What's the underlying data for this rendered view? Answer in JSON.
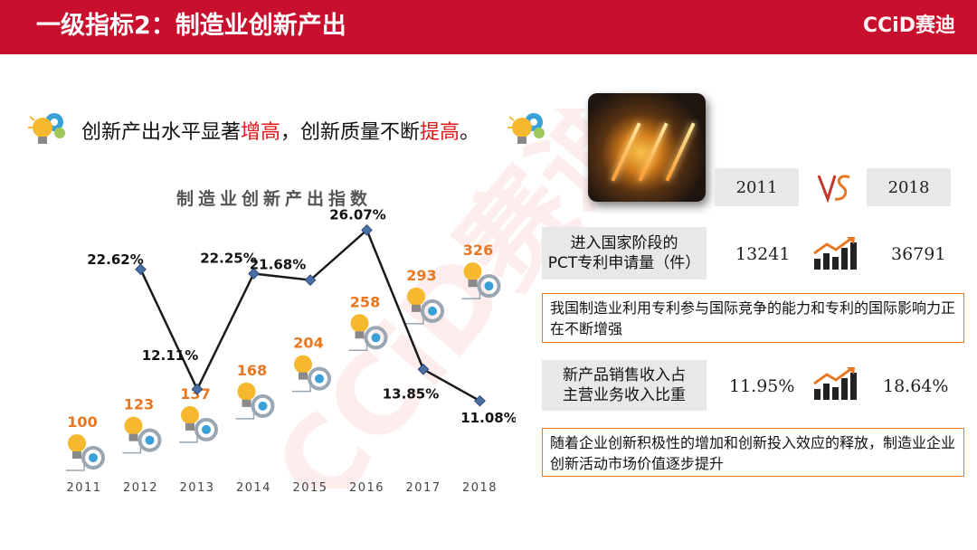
{
  "header": {
    "title": "一级指标2：制造业创新产出",
    "logo": "CCiD赛迪"
  },
  "watermark": "CCiD赛迪",
  "headline": {
    "p1": "创新产出水平显著",
    "h1": "增高",
    "p2": "，创新质量不断",
    "h2": "提高",
    "p3": "。"
  },
  "colors": {
    "header": "#c8102e",
    "highlight": "#e0181b",
    "orange": "#e87722",
    "line": "#1a1a1a",
    "marker": "#4a6fa5"
  },
  "chart_data": {
    "type": "line",
    "title": "制造业创新产出指数",
    "categories": [
      "2011",
      "2012",
      "2013",
      "2014",
      "2015",
      "2016",
      "2017",
      "2018"
    ],
    "series": [
      {
        "values": [
          null,
          22.62,
          12.11,
          22.25,
          21.68,
          26.07,
          13.85,
          11.08
        ],
        "labels": [
          "",
          "22.62%",
          "12.11%",
          "22.25%",
          "21.68%",
          "26.07%",
          "13.85%",
          "11.08%"
        ]
      }
    ],
    "index_values": [
      100,
      123,
      137,
      168,
      204,
      258,
      293,
      326
    ],
    "index_labels": [
      "100",
      "123",
      "137",
      "168",
      "204",
      "258",
      "293",
      "326"
    ],
    "legend": "none",
    "grid": false
  },
  "comparison": {
    "year_left": "2011",
    "year_right": "2018",
    "rows": [
      {
        "label_line1": "进入国家阶段的",
        "label_line2": "PCT专利申请量（件）",
        "left": "13241",
        "right": "36791"
      },
      {
        "label_line1": "新产品销售收入占",
        "label_line2": "主营业务收入比重",
        "left": "11.95%",
        "right": "18.64%"
      }
    ],
    "notes": [
      "我国制造业利用专利参与国际竞争的能力和专利的国际影响力正在不断增强",
      "随着企业创新积极性的增加和创新投入效应的释放，制造业企业创新活动市场价值逐步提升"
    ]
  }
}
